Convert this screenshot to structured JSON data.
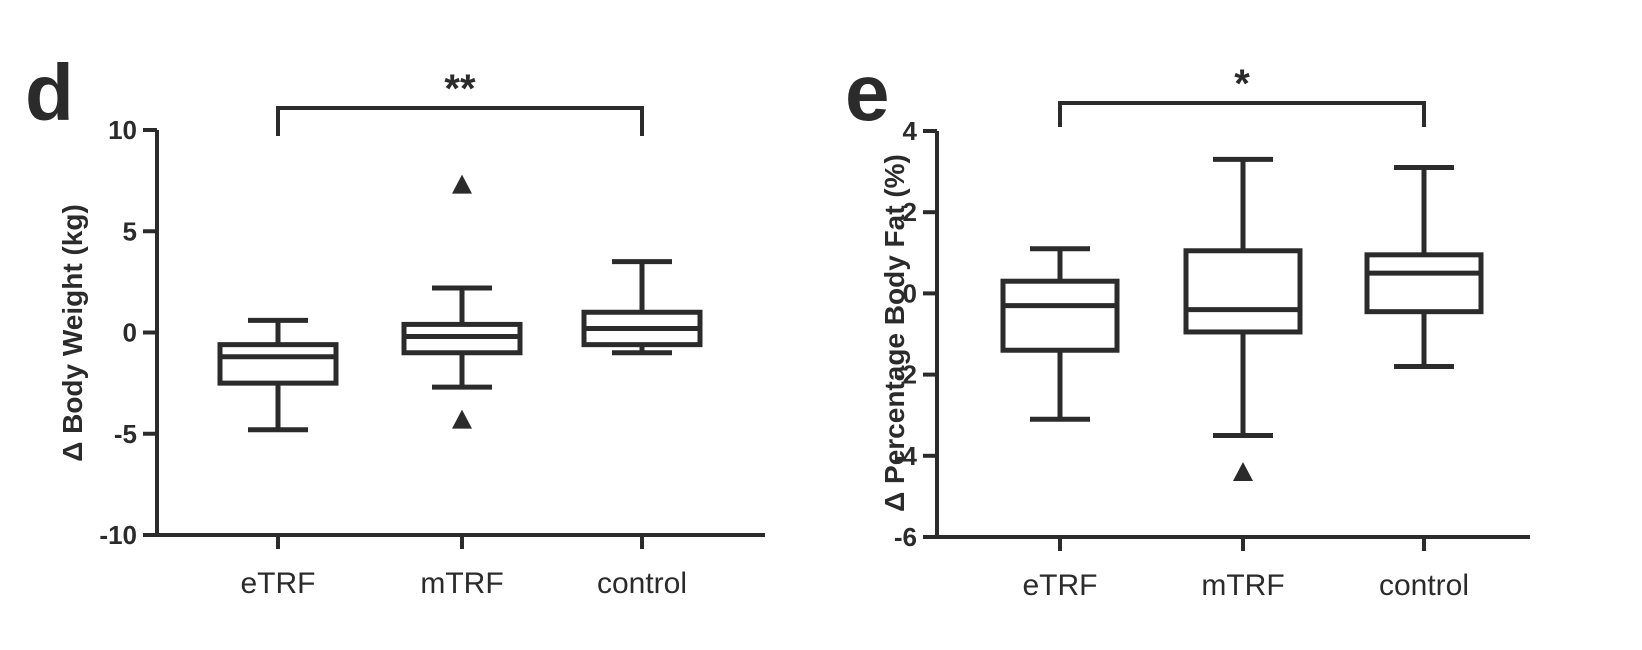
{
  "chart_data": [
    {
      "panel": "d",
      "type": "box",
      "ylabel": "Δ Body Weight (kg)",
      "categories": [
        "eTRF",
        "mTRF",
        "control"
      ],
      "ylim": [
        -10,
        10
      ],
      "yticks": [
        "10",
        "5",
        "0",
        "-5",
        "-10"
      ],
      "ytick_values": [
        10,
        5,
        0,
        -5,
        -10
      ],
      "boxes": [
        {
          "min": -4.8,
          "q1": -2.5,
          "median": -1.2,
          "q3": -0.6,
          "max": 0.6,
          "outliers": []
        },
        {
          "min": -2.7,
          "q1": -1.0,
          "median": -0.2,
          "q3": 0.4,
          "max": 2.2,
          "outliers": [
            7.3,
            -4.3
          ]
        },
        {
          "min": -1.0,
          "q1": -0.6,
          "median": 0.2,
          "q3": 1.0,
          "max": 3.5,
          "outliers": []
        }
      ],
      "significance": {
        "from": "eTRF",
        "to": "control",
        "label": "**"
      }
    },
    {
      "panel": "e",
      "type": "box",
      "ylabel": "Δ Percentage Body Fat (%)",
      "categories": [
        "eTRF",
        "mTRF",
        "control"
      ],
      "ylim": [
        -6,
        4
      ],
      "yticks": [
        "4",
        "2",
        "0",
        "-2",
        "-4",
        "-6"
      ],
      "ytick_values": [
        4,
        2,
        0,
        -2,
        -4,
        -6
      ],
      "boxes": [
        {
          "min": -3.1,
          "q1": -1.4,
          "median": -0.3,
          "q3": 0.3,
          "max": 1.1,
          "outliers": []
        },
        {
          "min": -3.5,
          "q1": -0.95,
          "median": -0.4,
          "q3": 1.05,
          "max": 3.3,
          "outliers": [
            -4.4
          ]
        },
        {
          "min": -1.8,
          "q1": -0.45,
          "median": 0.5,
          "q3": 0.95,
          "max": 3.1,
          "outliers": []
        }
      ],
      "significance": {
        "from": "eTRF",
        "to": "control",
        "label": "*"
      }
    }
  ]
}
